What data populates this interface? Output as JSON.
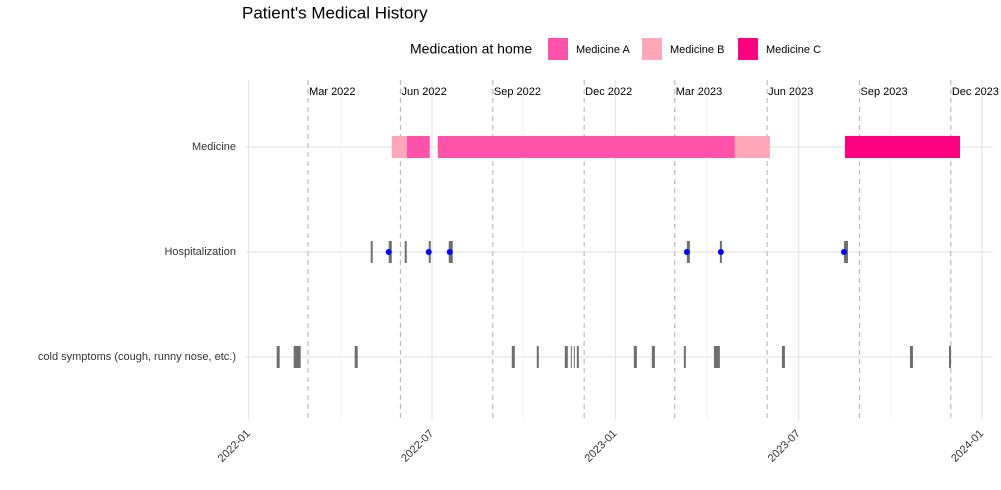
{
  "chart_data": {
    "type": "timeline",
    "title": "Patient's Medical History",
    "legend_title": "Medication at home",
    "xlim": [
      2021.99,
      2024.03
    ],
    "xticks": [
      {
        "value": 2022.0,
        "label": "2022-01"
      },
      {
        "value": 2022.5,
        "label": "2022-07"
      },
      {
        "value": 2023.0,
        "label": "2023-01"
      },
      {
        "value": 2023.5,
        "label": "2023-07"
      },
      {
        "value": 2024.0,
        "label": "2024-01"
      }
    ],
    "minor_xticks": [
      2022.25,
      2022.75,
      2023.25,
      2023.75
    ],
    "ref_lines": [
      {
        "value": 2022.162,
        "label": "Mar 2022"
      },
      {
        "value": 2022.414,
        "label": "Jun 2022"
      },
      {
        "value": 2022.666,
        "label": "Sep 2022"
      },
      {
        "value": 2022.915,
        "label": "Dec 2022"
      },
      {
        "value": 2023.162,
        "label": "Mar 2023"
      },
      {
        "value": 2023.414,
        "label": "Jun 2023"
      },
      {
        "value": 2023.666,
        "label": "Sep 2023"
      },
      {
        "value": 2023.915,
        "label": "Dec 2023"
      }
    ],
    "grid": true,
    "rows": [
      {
        "label": "Medicine",
        "series": [
          {
            "name": "Medicine A",
            "color": "#ff52a8",
            "start": [
              2022.4311,
              2022.5157
            ],
            "end": [
              2022.4939,
              2023.3261
            ]
          },
          {
            "name": "Medicine B",
            "color": "#ffa6b8",
            "start": [
              2022.3902,
              2023.3261
            ],
            "end": [
              2022.4311,
              2023.4215
            ]
          },
          {
            "name": "Medicine C",
            "color": "#ff0080",
            "start": [
              2023.6262
            ],
            "end": [
              2023.94
            ]
          }
        ]
      },
      {
        "label": "Hospitalization",
        "color": "#6e6e6e",
        "start": [
          2022.3329,
          2022.382,
          2022.4256,
          2022.4911,
          2022.5457,
          2023.1951,
          2023.2851,
          2023.6235
        ],
        "end": [
          2022.3383,
          2022.3902,
          2022.4311,
          2022.4966,
          2022.5566,
          2023.2033,
          2023.2906,
          2023.6344
        ],
        "points": [
          2022.382,
          2022.4911,
          2022.5484,
          2023.1951,
          2023.2878,
          2023.6235
        ],
        "point_color": "#0000ff"
      },
      {
        "label": "cold symptoms (cough, runny nose, etc.)",
        "color": "#6e6e6e",
        "start": [
          2022.0764,
          2022.1228,
          2022.2892,
          2022.7176,
          2022.7858,
          2022.8622,
          2022.8786,
          2022.8868,
          2022.895,
          2023.0505,
          2023.0996,
          2023.1869,
          2023.2688,
          2023.4543,
          2023.8035,
          2023.91
        ],
        "end": [
          2022.0846,
          2022.1419,
          2022.2974,
          2022.7258,
          2022.7913,
          2022.8704,
          2022.8813,
          2022.8895,
          2022.9004,
          2023.0587,
          2023.1078,
          2023.1923,
          2023.2851,
          2023.4625,
          2023.8117,
          2023.9154
        ]
      }
    ]
  }
}
